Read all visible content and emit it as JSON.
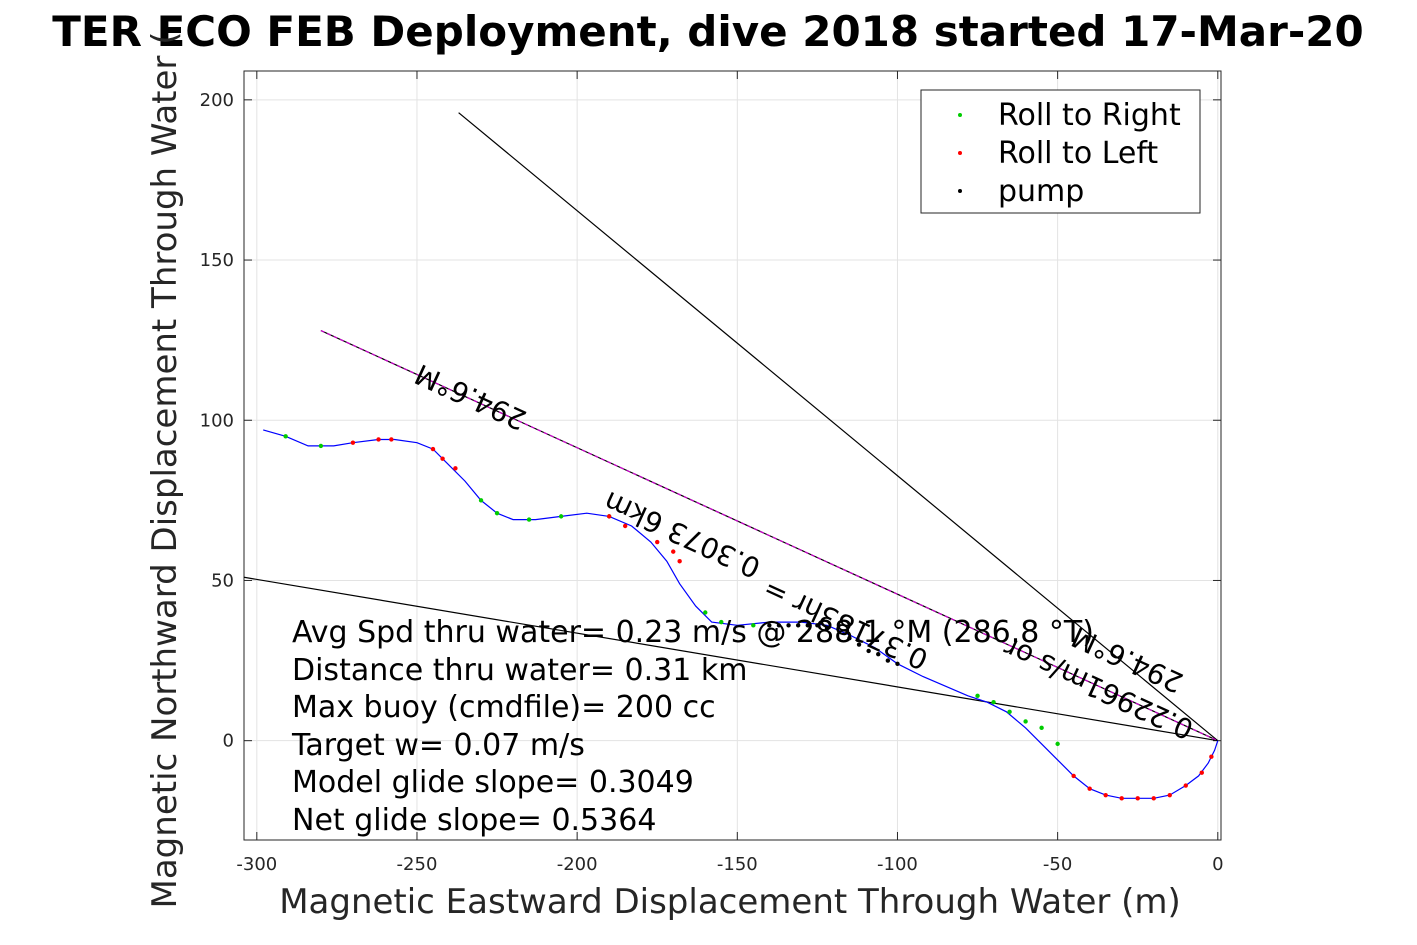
{
  "chart_data": {
    "type": "line",
    "title": "TER ECO FEB Deployment, dive 2018 started 17-Mar-20",
    "xlabel": "Magnetic Eastward Displacement Through Water (m)",
    "ylabel": "Magnetic Northward Displacement Through Water (",
    "xlim": [
      -304,
      1
    ],
    "ylim": [
      -31,
      209
    ],
    "xticks": [
      -300,
      -250,
      -200,
      -150,
      -100,
      -50,
      0
    ],
    "yticks": [
      0,
      50,
      100,
      150,
      200
    ],
    "grid": true,
    "legend": {
      "position": "top-right",
      "entries": [
        "Roll to Right",
        "Roll to Left",
        "pump"
      ]
    },
    "colors": {
      "track": "#0000ff",
      "roll_right": "#00cc00",
      "roll_left": "#ff0000",
      "pump": "#000000",
      "heading_line": "#cc00cc",
      "ref_line": "#000000"
    },
    "track": {
      "x": [
        -298,
        -291,
        -284,
        -276,
        -270,
        -262,
        -257,
        -250,
        -245,
        -241,
        -235,
        -230,
        -225,
        -220,
        -213,
        -205,
        -197,
        -190,
        -183,
        -177,
        -172,
        -168,
        -163,
        -158,
        -150,
        -140,
        -130,
        -122,
        -115,
        -107,
        -100,
        -92,
        -85,
        -78,
        -72,
        -66,
        -60,
        -55,
        -50,
        -45,
        -40,
        -35,
        -30,
        -25,
        -20,
        -15,
        -10,
        -6,
        -3,
        -1,
        0
      ],
      "y": [
        97,
        95,
        92,
        92,
        93,
        94,
        94,
        93,
        91,
        87,
        81,
        75,
        71,
        69,
        69,
        70,
        71,
        70,
        67,
        62,
        56,
        49,
        42,
        37,
        36,
        37,
        37,
        36,
        33,
        29,
        24,
        20,
        17,
        14,
        12,
        9,
        4,
        -1,
        -6,
        -11,
        -15,
        -17,
        -18,
        -18,
        -18,
        -17,
        -14,
        -11,
        -7,
        -3,
        0
      ]
    },
    "markers": {
      "roll_right_x": [
        -291,
        -280,
        -230,
        -225,
        -215,
        -205,
        -190,
        -160,
        -155,
        -145,
        -75,
        -70,
        -65,
        -60,
        -55,
        -50
      ],
      "roll_right_y": [
        95,
        92,
        75,
        71,
        69,
        70,
        70,
        40,
        37,
        36,
        14,
        12,
        9,
        6,
        4,
        -1
      ],
      "roll_left_x": [
        -270,
        -262,
        -258,
        -245,
        -242,
        -238,
        -190,
        -185,
        -175,
        -170,
        -168,
        -45,
        -40,
        -35,
        -30,
        -25,
        -20,
        -15,
        -10,
        -5,
        -2
      ],
      "roll_left_y": [
        93,
        94,
        94,
        91,
        88,
        85,
        70,
        67,
        62,
        59,
        56,
        -11,
        -15,
        -17,
        -18,
        -18,
        -18,
        -17,
        -14,
        -10,
        -5
      ],
      "pump_x": [
        -140,
        -137,
        -134,
        -131,
        -128,
        -125,
        -122,
        -115,
        -112,
        -109,
        -106,
        -103,
        -100
      ],
      "pump_y": [
        36,
        36,
        36,
        36,
        36,
        36,
        35,
        32,
        30,
        28,
        27,
        25,
        24
      ]
    },
    "heading_line": {
      "x": [
        -280,
        0
      ],
      "y": [
        128,
        0
      ]
    },
    "ref_lines": [
      {
        "x": [
          -237,
          0
        ],
        "y": [
          196,
          0
        ]
      },
      {
        "x": [
          -304,
          0
        ],
        "y": [
          51,
          0
        ]
      }
    ],
    "rotated_labels": [
      {
        "text": "294.6°M",
        "x": -232,
        "y": 110,
        "angle": 204.6
      },
      {
        "text": "0.3073 6km",
        "x": -166,
        "y": 67,
        "angle": 204.6
      },
      {
        "text": "0.37183hr =",
        "x": -115,
        "y": 39,
        "angle": 204.6
      },
      {
        "text": "0.22961m/s or",
        "x": -36,
        "y": 19,
        "angle": 204.6
      },
      {
        "text": "294.6°M",
        "x": -27,
        "y": 28,
        "angle": 204.6
      }
    ],
    "stats": [
      "Avg Spd thru water=  0.23 m/s @ 288.1 °M (286.8 °T)",
      "Distance thru water=  0.31 km",
      "Max buoy (cmdfile)= 200 cc",
      "Target w= 0.07 m/s",
      "Model glide slope= 0.3049",
      "Net glide slope= 0.5364"
    ]
  }
}
